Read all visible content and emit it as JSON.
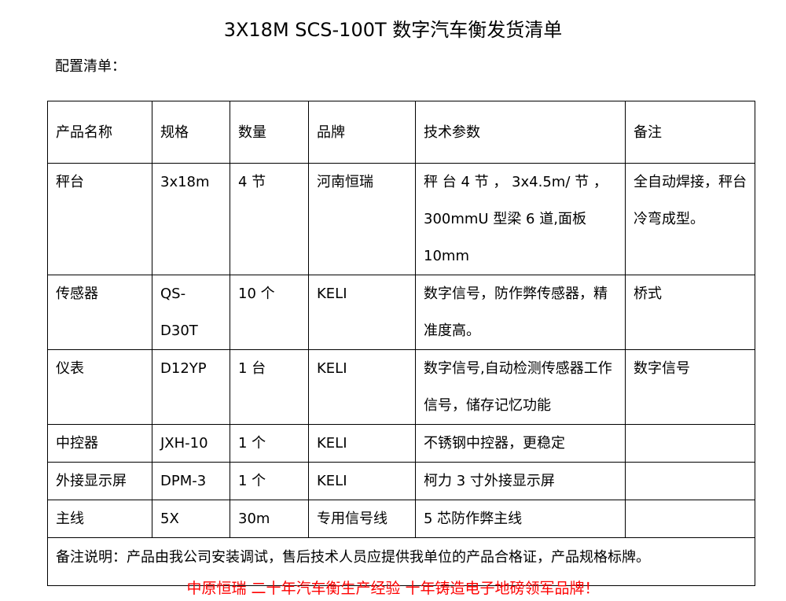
{
  "title": "3X18M SCS-100T 数字汽车衡发货清单",
  "subtitle": "配置清单：",
  "table": {
    "headers": [
      "产品名称",
      "规格",
      "数量",
      "品牌",
      "技术参数",
      "备注"
    ],
    "rows": [
      [
        "秤台",
        "3x18m",
        "4 节",
        "河南恒瑞",
        "秤 台 4 节 ， 3x4.5m/ 节 ，300mmU 型梁 6 道,面板 10mm",
        "全自动焊接，秤台冷弯成型。"
      ],
      [
        "传感器",
        "QS-D30T",
        "10 个",
        "KELI",
        "数字信号，防作弊传感器，精准度高。",
        "桥式"
      ],
      [
        "仪表",
        "D12YP",
        "1 台",
        "KELI",
        "数字信号,自动检测传感器工作信号，储存记忆功能",
        "数字信号"
      ],
      [
        "中控器",
        "JXH-10",
        "1 个",
        "KELI",
        "不锈钢中控器，更稳定",
        ""
      ],
      [
        "外接显示屏",
        "DPM-3",
        "1 个",
        "KELI",
        "柯力 3 寸外接显示屏",
        ""
      ],
      [
        "主线",
        "5X",
        "30m",
        "专用信号线",
        "5 芯防作弊主线",
        ""
      ]
    ],
    "note": "备注说明：产品由我公司安装调试，售后技术人员应提供我单位的产品合格证，产品规格标牌。"
  },
  "slogan": "中原恒瑞 二十年汽车衡生产经验 十年铸造电子地磅领军品牌！",
  "colors": {
    "slogan": "#ff0000"
  }
}
